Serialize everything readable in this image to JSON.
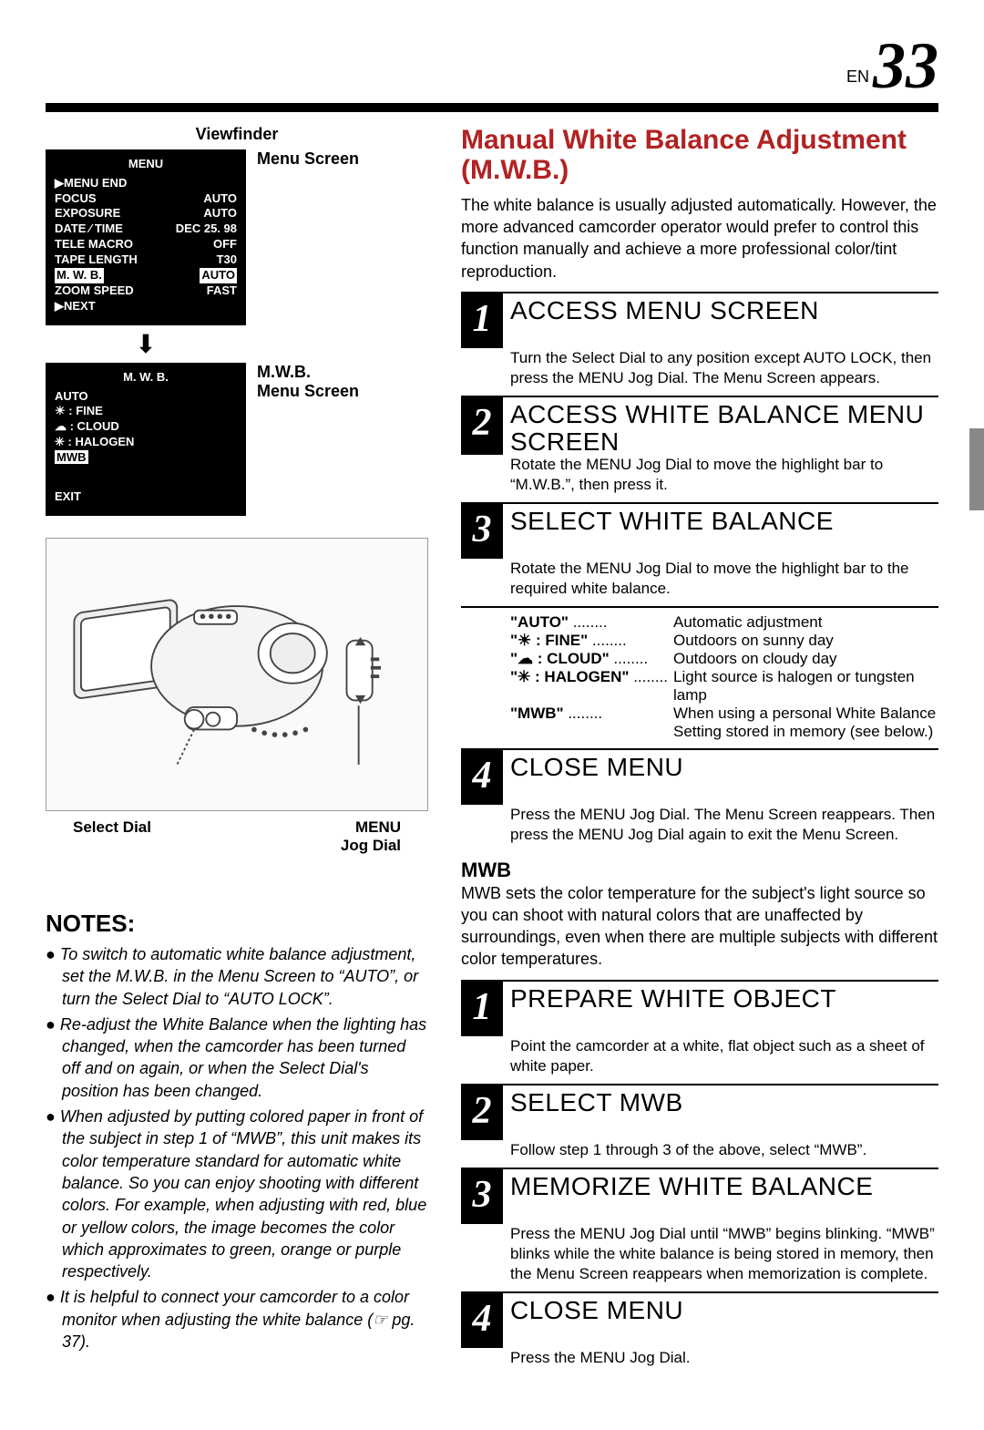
{
  "page": {
    "lang": "EN",
    "number": "33"
  },
  "viewfinder_label": "Viewfinder",
  "menu_screen_label": "Menu Screen",
  "mwb_screen_label": "M.W.B.\nMenu Screen",
  "menu_box": {
    "title": "MENU",
    "rows": [
      [
        "▶MENU  END",
        ""
      ],
      [
        "FOCUS",
        "AUTO"
      ],
      [
        "EXPOSURE",
        "AUTO"
      ],
      [
        "DATE ⁄ TIME",
        "DEC 25. 98"
      ],
      [
        "TELE  MACRO",
        "OFF"
      ],
      [
        "TAPE  LENGTH",
        "T30"
      ]
    ],
    "highlight": [
      "M. W. B.",
      "AUTO"
    ],
    "after": [
      [
        "ZOOM SPEED",
        "FAST"
      ],
      [
        "▶NEXT",
        ""
      ]
    ]
  },
  "mwb_box": {
    "title": "M. W. B.",
    "rows": [
      "AUTO",
      "☀ : FINE",
      "☁ : CLOUD",
      "✳ : HALOGEN"
    ],
    "highlight": "MWB",
    "exit": "EXIT"
  },
  "cam_label_left": "Select Dial",
  "cam_label_right": "MENU\nJog Dial",
  "notes_head": "NOTES:",
  "notes": [
    "To switch to automatic white balance adjustment, set the M.W.B. in the Menu Screen to “AUTO”, or turn the Select Dial to “AUTO LOCK”.",
    "Re-adjust the White Balance when the lighting has changed, when the camcorder has been turned off and on again, or when the Select Dial's position has been changed.",
    "When adjusted by putting colored paper in front of the subject in step 1 of “MWB”, this unit makes its color temperature standard for automatic white balance. So you can enjoy shooting with different colors. For example, when adjusting with red, blue or yellow colors, the image becomes the color which approximates to green, orange or purple respectively.",
    "It is helpful to connect your camcorder to a color monitor when adjusting the white balance (☞ pg. 37)."
  ],
  "section_title": "Manual White Balance Adjustment (M.W.B.)",
  "intro": "The white balance is usually adjusted automatically. However, the more advanced camcorder operator would prefer to control this function manually and achieve a more professional color/tint reproduction.",
  "steps_a": [
    {
      "n": "1",
      "title": "ACCESS MENU SCREEN",
      "body": "Turn the Select Dial to any position except AUTO LOCK, then press the MENU Jog Dial. The Menu Screen appears."
    },
    {
      "n": "2",
      "title": "ACCESS WHITE BALANCE MENU SCREEN",
      "body": "Rotate the MENU Jog Dial to move the highlight bar to “M.W.B.”, then press it."
    },
    {
      "n": "3",
      "title": "SELECT WHITE BALANCE",
      "body": "Rotate the MENU Jog Dial to move the highlight bar to the required white balance."
    }
  ],
  "wb_options": [
    {
      "key": "\"AUTO\"",
      "val": "Automatic adjustment"
    },
    {
      "key": "\"☀  : FINE\"",
      "val": "Outdoors on sunny day"
    },
    {
      "key": "\"☁  : CLOUD\"",
      "val": "Outdoors on cloudy day"
    },
    {
      "key": "\"✳  : HALOGEN\"",
      "val": "Light source is halogen or tungsten lamp"
    },
    {
      "key": "\"MWB\"",
      "val": "When using a personal White Balance Setting stored in memory (see below.)"
    }
  ],
  "step_a4": {
    "n": "4",
    "title": "CLOSE MENU",
    "body": "Press the MENU Jog Dial. The Menu Screen reappears. Then press the MENU Jog Dial again to exit the Menu Screen."
  },
  "mwb_sub_head": "MWB",
  "mwb_sub_body": "MWB sets the color temperature for the subject's light source so you can shoot with natural colors that are unaffected by surroundings, even when there are multiple subjects with different color temperatures.",
  "steps_b": [
    {
      "n": "1",
      "title": "PREPARE WHITE OBJECT",
      "body": "Point the camcorder at a white, flat object such as a sheet of white paper."
    },
    {
      "n": "2",
      "title": "SELECT MWB",
      "body": "Follow step 1 through 3 of the above, select “MWB”."
    },
    {
      "n": "3",
      "title": "MEMORIZE WHITE BALANCE",
      "body": "Press the MENU Jog Dial until “MWB” begins blinking. “MWB” blinks while the white balance is being stored in memory, then the Menu Screen reappears when memorization is complete."
    },
    {
      "n": "4",
      "title": "CLOSE MENU",
      "body": "Press the MENU Jog Dial."
    }
  ],
  "colors": {
    "accent": "#b22222",
    "bg": "#ffffff"
  }
}
